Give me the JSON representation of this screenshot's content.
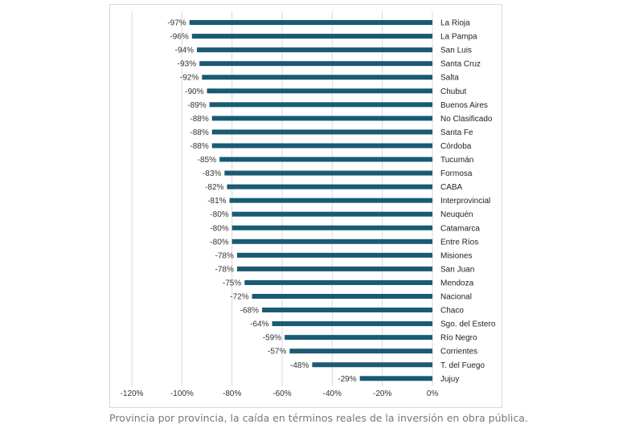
{
  "caption": "Provincia por provincia, la caída en términos reales de la inversión en obra pública.",
  "colors": {
    "bar": "#1a5a73",
    "grid": "#d9d9d9"
  },
  "chart_data": {
    "type": "bar",
    "orientation": "horizontal",
    "categories": [
      "La Rioja",
      "La Pampa",
      "San Luis",
      "Santa Cruz",
      "Salta",
      "Chubut",
      "Buenos Aires",
      "No Clasificado",
      "Santa Fe",
      "Córdoba",
      "Tucumán",
      "Formosa",
      "CABA",
      "Interprovincial",
      "Neuquén",
      "Catamarca",
      "Entre Ríos",
      "Misiones",
      "San Juan",
      "Mendoza",
      "Nacional",
      "Chaco",
      "Sgo. del Estero",
      "Río Negro",
      "Corrientes",
      "T. del Fuego",
      "Jujuy"
    ],
    "values": [
      -97,
      -96,
      -94,
      -93,
      -92,
      -90,
      -89,
      -88,
      -88,
      -88,
      -85,
      -83,
      -82,
      -81,
      -80,
      -80,
      -80,
      -78,
      -78,
      -75,
      -72,
      -68,
      -64,
      -59,
      -57,
      -48,
      -29
    ],
    "data_labels": [
      "-97%",
      "-96%",
      "-94%",
      "-93%",
      "-92%",
      "-90%",
      "-89%",
      "-88%",
      "-88%",
      "-88%",
      "-85%",
      "-83%",
      "-82%",
      "-81%",
      "-80%",
      "-80%",
      "-80%",
      "-78%",
      "-78%",
      "-75%",
      "-72%",
      "-68%",
      "-64%",
      "-59%",
      "-57%",
      "-48%",
      "-29%"
    ],
    "xlim": [
      -120,
      0
    ],
    "x_ticks": [
      -120,
      -100,
      -80,
      -60,
      -40,
      -20,
      0
    ],
    "x_tick_labels": [
      "-120%",
      "-100%",
      "-80%",
      "-60%",
      "-40%",
      "-20%",
      "0%"
    ],
    "grid": true,
    "legend": "none",
    "title": "",
    "xlabel": "",
    "ylabel": ""
  }
}
